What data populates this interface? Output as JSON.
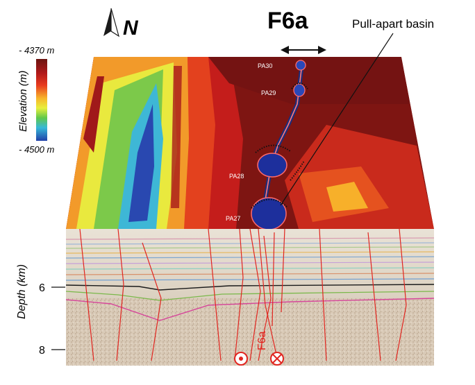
{
  "north_label": "N",
  "fault_title": "F6a",
  "basin_label": "Pull-apart basin",
  "legend": {
    "title": "Elevation (m)",
    "max_label": "- 4370 m",
    "min_label": "- 4500 m",
    "colors": [
      "#6b1410",
      "#b3191a",
      "#e83a1e",
      "#f7b52a",
      "#e8ef3c",
      "#60c84a",
      "#36b8d8",
      "#2140a8"
    ]
  },
  "basins": [
    {
      "id": "PA30",
      "label": "PA30"
    },
    {
      "id": "PA29",
      "label": "PA29"
    },
    {
      "id": "PA28",
      "label": "PA28"
    },
    {
      "id": "PA27",
      "label": "PA27"
    }
  ],
  "depth_axis": {
    "title": "Depth (km)",
    "ticks": [
      "6",
      "8"
    ]
  },
  "section_fault_label": "F6a",
  "motion_symbols": [
    "out-of-page",
    "into-page"
  ]
}
